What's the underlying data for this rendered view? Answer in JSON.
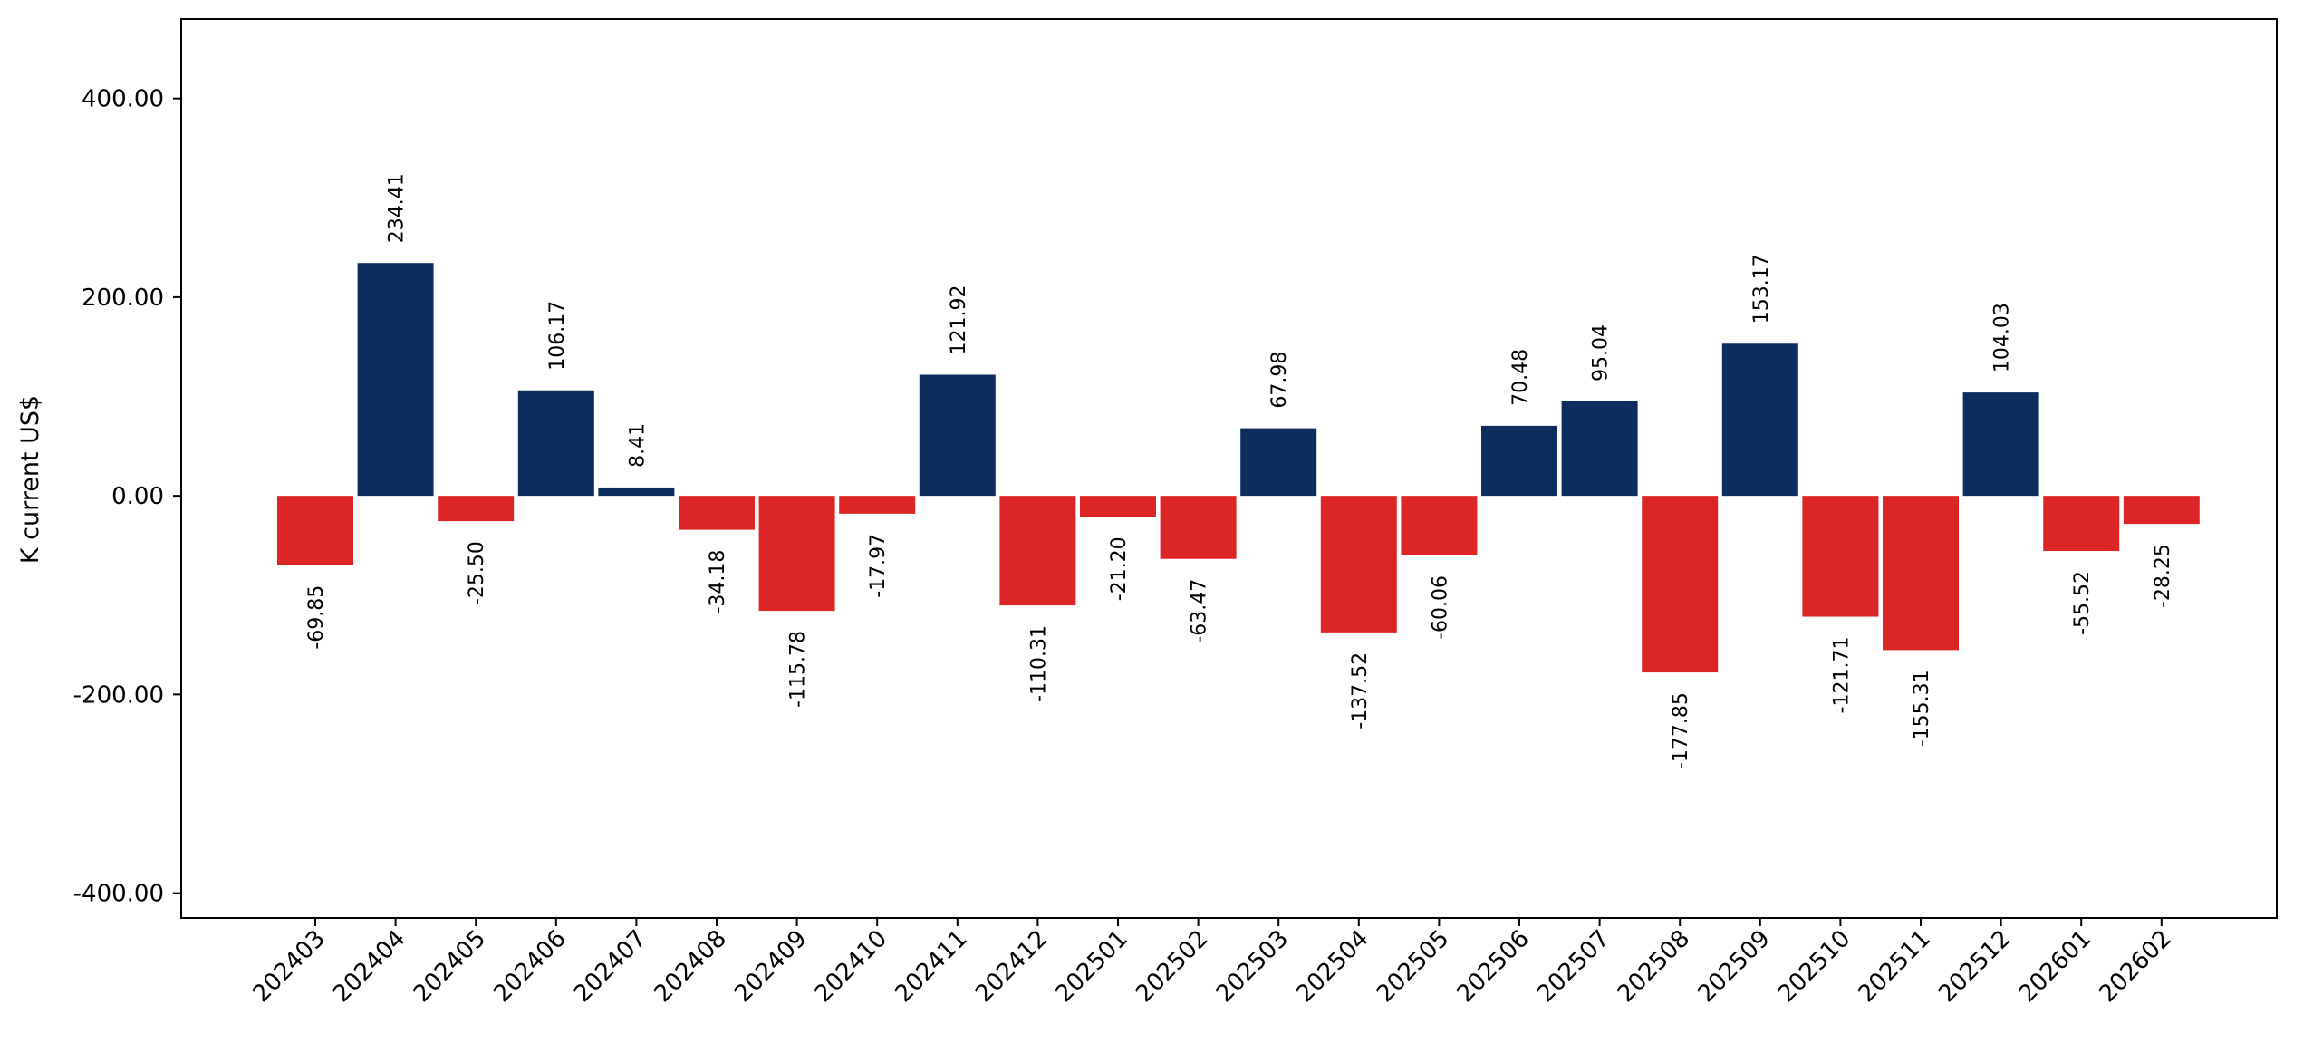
{
  "chart_data": {
    "type": "bar",
    "title": "",
    "xlabel": "",
    "ylabel": "K current US$",
    "ylim": [
      -425,
      480
    ],
    "yticks": [
      400,
      200,
      0,
      -200,
      -400
    ],
    "ytick_labels": [
      "400.00",
      "200.00",
      "0.00",
      "-200.00",
      "-400.00"
    ],
    "grid": false,
    "legend": "none",
    "colors": {
      "positive": "#0d2d5e",
      "negative": "#dc2626",
      "axis": "#000000"
    },
    "categories": [
      "202403",
      "202404",
      "202405",
      "202406",
      "202407",
      "202408",
      "202409",
      "202410",
      "202411",
      "202412",
      "202501",
      "202502",
      "202503",
      "202504",
      "202505",
      "202506",
      "202507",
      "202508",
      "202509",
      "202510",
      "202511",
      "202512",
      "202601",
      "202602"
    ],
    "values": [
      -69.85,
      234.41,
      -25.5,
      106.17,
      8.41,
      -34.18,
      -115.78,
      -17.97,
      121.92,
      -110.31,
      -21.2,
      -63.47,
      67.98,
      -137.52,
      -60.06,
      70.48,
      95.04,
      -177.85,
      153.17,
      -121.71,
      -155.31,
      104.03,
      -55.52,
      -28.25
    ],
    "value_labels": [
      "-69.85",
      "234.41",
      "-25.50",
      "106.17",
      "8.41",
      "-34.18",
      "-115.78",
      "-17.97",
      "121.92",
      "-110.31",
      "-21.20",
      "-63.47",
      "67.98",
      "-137.52",
      "-60.06",
      "70.48",
      "95.04",
      "-177.85",
      "153.17",
      "-121.71",
      "-155.31",
      "104.03",
      "-55.52",
      "-28.25"
    ]
  }
}
